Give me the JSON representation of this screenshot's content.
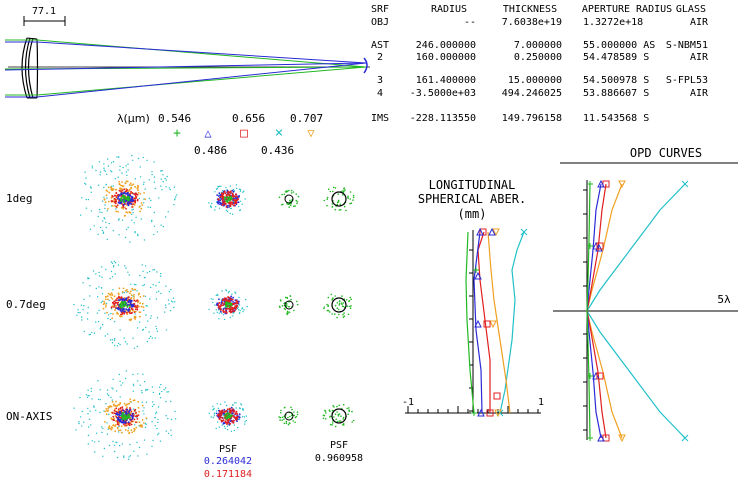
{
  "scale_bar": {
    "label": "77.1"
  },
  "prescription": {
    "headers": [
      "SRF",
      "RADIUS",
      "THICKNESS",
      "APERTURE RADIUS",
      "GLASS"
    ],
    "rows": [
      {
        "srf": "OBJ",
        "radius": "--",
        "thickness": "7.6038e+19",
        "aperture": "1.3272e+18",
        "glass": "AIR"
      },
      {
        "srf": "AST",
        "radius": "246.000000",
        "thickness": "7.000000",
        "aperture": "55.000000 AS",
        "glass": "S-NBM51"
      },
      {
        "srf": "2",
        "radius": "160.000000",
        "thickness": "0.250000",
        "aperture": "54.478589 S",
        "glass": "AIR"
      },
      {
        "srf": "3",
        "radius": "161.400000",
        "thickness": "15.000000",
        "aperture": "54.500978 S",
        "glass": "S-FPL53"
      },
      {
        "srf": "4",
        "radius": "-3.5000e+03",
        "thickness": "494.246025",
        "aperture": "53.886607 S",
        "glass": "AIR"
      },
      {
        "srf": "IMS",
        "radius": "-228.113550",
        "thickness": "149.796158",
        "aperture": "11.543568 S",
        "glass": ""
      }
    ]
  },
  "wavelengths": {
    "label": "λ(μm)",
    "items": [
      {
        "value": "0.546",
        "symbol": "+",
        "color": "#22b822"
      },
      {
        "value": "0.486",
        "symbol": "△",
        "color": "#2a2ad8"
      },
      {
        "value": "0.656",
        "symbol": "□",
        "color": "#e02020"
      },
      {
        "value": "0.436",
        "symbol": "×",
        "color": "#20c0c8"
      },
      {
        "value": "0.707",
        "symbol": "▽",
        "color": "#f0a020"
      }
    ]
  },
  "spots": {
    "fields": [
      "1deg",
      "0.7deg",
      "ON-AXIS"
    ]
  },
  "psf": {
    "left": {
      "label": "PSF",
      "values": [
        "0.264042",
        "0.171184"
      ],
      "colors": [
        "#2a2ad8",
        "#e02020"
      ]
    },
    "right": {
      "label": "PSF",
      "values": [
        "0.960958"
      ]
    }
  },
  "longitudinal": {
    "title": [
      "LONGITUDINAL",
      "SPHERICAL ABER.",
      "(mm)"
    ],
    "axis_min_label": "-1",
    "axis_max_label": "1"
  },
  "opd": {
    "title": "OPD CURVES",
    "scale_label": "5λ"
  }
}
